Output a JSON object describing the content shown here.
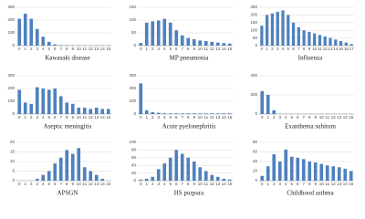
{
  "chart_data": [
    {
      "type": "bar",
      "title": "Kawasaki disease",
      "categories": [
        "0",
        "1",
        "2",
        "3",
        "4",
        "5",
        "6",
        "7",
        "8",
        "9",
        "10",
        "11",
        "12",
        "13",
        "14",
        "15"
      ],
      "values": [
        210,
        250,
        210,
        130,
        70,
        30,
        10,
        4,
        3,
        3,
        3,
        2,
        2,
        2,
        2,
        2
      ],
      "color": "#4f81bd",
      "ylim": [
        0,
        300
      ],
      "yticks": [
        0,
        100,
        200,
        300
      ],
      "grid": true
    },
    {
      "type": "bar",
      "title": "MP pneumonia",
      "categories": [
        "0",
        "1",
        "2",
        "3",
        "4",
        "5",
        "6",
        "7",
        "8",
        "9",
        "10",
        "11",
        "12",
        "13",
        "14",
        "15"
      ],
      "values": [
        10,
        90,
        95,
        98,
        105,
        90,
        60,
        40,
        30,
        25,
        20,
        18,
        15,
        12,
        10,
        8
      ],
      "color": "#4f81bd",
      "ylim": [
        0,
        150
      ],
      "yticks": [
        0,
        50,
        100,
        150
      ],
      "grid": true
    },
    {
      "type": "bar",
      "title": "Influenza",
      "categories": [
        "0",
        "1",
        "2",
        "3",
        "4",
        "5",
        "6",
        "7",
        "8",
        "9",
        "10",
        "11",
        "12",
        "13",
        "14",
        "15",
        "16",
        "17"
      ],
      "values": [
        130,
        200,
        210,
        220,
        230,
        200,
        150,
        120,
        100,
        90,
        80,
        70,
        60,
        50,
        40,
        30,
        20,
        10
      ],
      "color": "#4f81bd",
      "ylim": [
        0,
        250
      ],
      "yticks": [
        0,
        50,
        100,
        150,
        200,
        250
      ],
      "grid": true
    },
    {
      "type": "bar",
      "title": "Aseptic meningitis",
      "categories": [
        "0",
        "1",
        "2",
        "3",
        "4",
        "5",
        "6",
        "7",
        "8",
        "9",
        "10",
        "11",
        "12",
        "13",
        "14",
        "15"
      ],
      "values": [
        190,
        90,
        80,
        210,
        200,
        190,
        200,
        140,
        90,
        80,
        50,
        50,
        40,
        50,
        40,
        40
      ],
      "color": "#4f81bd",
      "ylim": [
        0,
        300
      ],
      "yticks": [
        0,
        100,
        200,
        300
      ],
      "grid": true
    },
    {
      "type": "bar",
      "title": "Acute pyelonephritis",
      "categories": [
        "0",
        "1",
        "2",
        "3",
        "4",
        "5",
        "6",
        "7",
        "8",
        "9",
        "10",
        "11",
        "12",
        "13",
        "14",
        "15"
      ],
      "values": [
        240,
        30,
        15,
        10,
        6,
        5,
        5,
        5,
        5,
        5,
        5,
        5,
        5,
        5,
        5,
        5
      ],
      "color": "#4f81bd",
      "ylim": [
        0,
        300
      ],
      "yticks": [
        0,
        100,
        200,
        300
      ],
      "grid": true
    },
    {
      "type": "bar",
      "title": "Exanthema subitum",
      "categories": [
        "0",
        "1",
        "2",
        "3",
        "4",
        "5",
        "6",
        "7",
        "8",
        "9",
        "10",
        "11",
        "12",
        "13",
        "14",
        "15"
      ],
      "values": [
        240,
        200,
        40,
        3,
        2,
        2,
        2,
        2,
        2,
        2,
        2,
        2,
        2,
        2,
        2,
        2
      ],
      "color": "#4f81bd",
      "ylim": [
        0,
        400
      ],
      "yticks": [
        0,
        200,
        400
      ],
      "grid": true
    },
    {
      "type": "bar",
      "title": "APSGN",
      "categories": [
        "0",
        "1",
        "2",
        "3",
        "4",
        "5",
        "6",
        "7",
        "8",
        "9",
        "10",
        "11",
        "12",
        "13",
        "14",
        "15"
      ],
      "values": [
        0,
        0,
        0,
        1,
        3,
        5,
        9,
        12,
        16,
        14,
        17,
        7,
        5,
        3,
        1,
        0
      ],
      "color": "#4f81bd",
      "ylim": [
        0,
        20
      ],
      "yticks": [
        0,
        5,
        10,
        15,
        20
      ],
      "grid": true
    },
    {
      "type": "bar",
      "title": "HS purpura",
      "categories": [
        "0",
        "1",
        "2",
        "3",
        "4",
        "5",
        "6",
        "7",
        "8",
        "9",
        "10",
        "11",
        "12",
        "13",
        "14",
        "15"
      ],
      "values": [
        3,
        5,
        10,
        30,
        45,
        60,
        80,
        70,
        60,
        50,
        35,
        25,
        15,
        10,
        5,
        3
      ],
      "color": "#4f81bd",
      "ylim": [
        0,
        100
      ],
      "yticks": [
        0,
        20,
        40,
        60,
        80,
        100
      ],
      "grid": true
    },
    {
      "type": "bar",
      "title": "Childhood asthma",
      "categories": [
        "0",
        "1",
        "2",
        "3",
        "4",
        "5",
        "6",
        "7",
        "8",
        "9",
        "10",
        "11",
        "12",
        "13",
        "14",
        "15"
      ],
      "values": [
        10,
        30,
        55,
        40,
        65,
        50,
        48,
        45,
        40,
        38,
        35,
        32,
        30,
        28,
        25,
        20
      ],
      "color": "#4f81bd",
      "ylim": [
        0,
        80
      ],
      "yticks": [
        0,
        20,
        40,
        60,
        80
      ],
      "grid": true
    }
  ]
}
